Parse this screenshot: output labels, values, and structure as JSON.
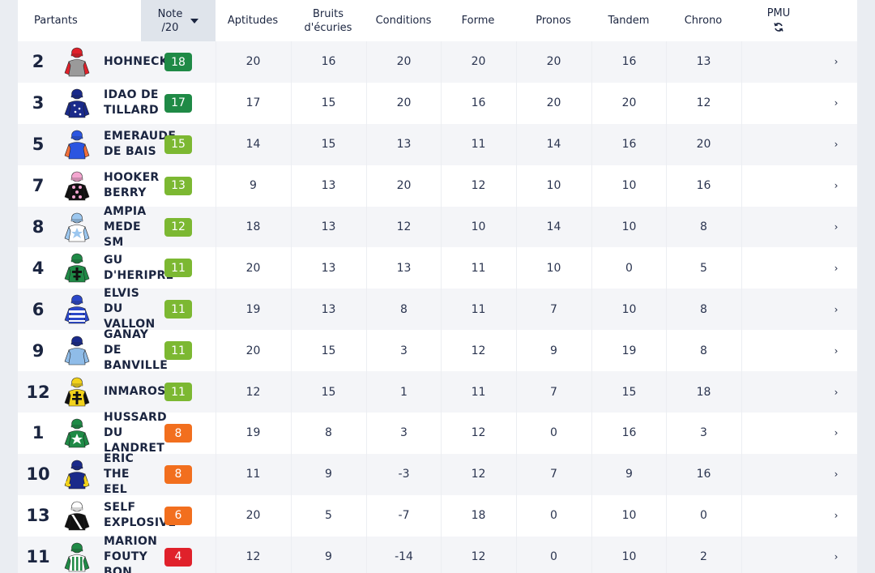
{
  "columns": {
    "partants": "Partants",
    "note_line1": "Note",
    "note_line2": "/20",
    "aptitudes": "Aptitudes",
    "bruits_line1": "Bruits",
    "bruits_line2": "d'écuries",
    "conditions": "Conditions",
    "forme": "Forme",
    "pronos": "Pronos",
    "tandem": "Tandem",
    "chrono": "Chrono",
    "pmu": "PMU",
    "pmu_icon": "refresh-icon"
  },
  "colors": {
    "dark_green": "#1f8a46",
    "light_green": "#7cb832",
    "orange": "#f26f1e",
    "red": "#e0212b"
  },
  "rows": [
    {
      "num": "2",
      "name": [
        "HOHNECK"
      ],
      "note": "18",
      "note_color": "#1f8a46",
      "aptitudes": "20",
      "bruits": "16",
      "conditions": "20",
      "forme": "20",
      "pronos": "20",
      "tandem": "16",
      "chrono": "13",
      "silk": {
        "body": "#9a9a9a",
        "sleeve": "#e0212b",
        "cap": "#e0212b",
        "pattern": "none",
        "patternColor": "#ffffff"
      }
    },
    {
      "num": "3",
      "name": [
        "IDAO DE",
        "TILLARD"
      ],
      "note": "17",
      "note_color": "#1f8a46",
      "aptitudes": "17",
      "bruits": "15",
      "conditions": "20",
      "forme": "16",
      "pronos": "20",
      "tandem": "20",
      "chrono": "12",
      "silk": {
        "body": "#1a2a8a",
        "sleeve": "#1a2a8a",
        "cap": "#1a2a8a",
        "pattern": "dots",
        "patternColor": "#ffffff"
      }
    },
    {
      "num": "5",
      "name": [
        "EMERAUDE",
        "DE BAIS"
      ],
      "note": "15",
      "note_color": "#7cb832",
      "aptitudes": "14",
      "bruits": "15",
      "conditions": "13",
      "forme": "11",
      "pronos": "14",
      "tandem": "16",
      "chrono": "20",
      "silk": {
        "body": "#2b55e0",
        "sleeve": "#f26f3a",
        "cap": "#2b55e0",
        "pattern": "none",
        "patternColor": "#ffffff"
      }
    },
    {
      "num": "7",
      "name": [
        "HOOKER",
        "BERRY"
      ],
      "note": "13",
      "note_color": "#7cb832",
      "aptitudes": "9",
      "bruits": "13",
      "conditions": "20",
      "forme": "12",
      "pronos": "10",
      "tandem": "10",
      "chrono": "16",
      "silk": {
        "body": "#111111",
        "sleeve": "#111111",
        "cap": "#f4a6d0",
        "pattern": "stars",
        "patternColor": "#f4a6d0"
      }
    },
    {
      "num": "8",
      "name": [
        "AMPIA",
        "MEDE",
        "SM"
      ],
      "note": "12",
      "note_color": "#7cb832",
      "aptitudes": "18",
      "bruits": "13",
      "conditions": "12",
      "forme": "10",
      "pronos": "14",
      "tandem": "10",
      "chrono": "8",
      "silk": {
        "body": "#ffffff",
        "sleeve": "#9cc7ef",
        "cap": "#9cc7ef",
        "pattern": "star",
        "patternColor": "#9cc7ef"
      }
    },
    {
      "num": "4",
      "name": [
        "GU",
        "D'HERIPRE"
      ],
      "note": "11",
      "note_color": "#7cb832",
      "aptitudes": "20",
      "bruits": "13",
      "conditions": "13",
      "forme": "11",
      "pronos": "10",
      "tandem": "0",
      "chrono": "5",
      "silk": {
        "body": "#1f8a46",
        "sleeve": "#1f8a46",
        "cap": "#1f8a46",
        "pattern": "cross",
        "patternColor": "#111111"
      }
    },
    {
      "num": "6",
      "name": [
        "ELVIS",
        "DU",
        "VALLON"
      ],
      "note": "11",
      "note_color": "#7cb832",
      "aptitudes": "19",
      "bruits": "13",
      "conditions": "8",
      "forme": "11",
      "pronos": "7",
      "tandem": "10",
      "chrono": "8",
      "silk": {
        "body": "#2b47c9",
        "sleeve": "#2b47c9",
        "cap": "#2b47c9",
        "pattern": "hoops",
        "patternColor": "#ffffff"
      }
    },
    {
      "num": "9",
      "name": [
        "GANAY",
        "DE",
        "BANVILLE"
      ],
      "note": "11",
      "note_color": "#7cb832",
      "aptitudes": "20",
      "bruits": "15",
      "conditions": "3",
      "forme": "12",
      "pronos": "9",
      "tandem": "19",
      "chrono": "8",
      "silk": {
        "body": "#8fbce8",
        "sleeve": "#8fbce8",
        "cap": "#1a2a8a",
        "pattern": "none",
        "patternColor": "#ffffff"
      }
    },
    {
      "num": "12",
      "name": [
        "INMAROSA"
      ],
      "note": "11",
      "note_color": "#7cb832",
      "aptitudes": "12",
      "bruits": "15",
      "conditions": "1",
      "forme": "11",
      "pronos": "7",
      "tandem": "15",
      "chrono": "18",
      "silk": {
        "body": "#f2d21a",
        "sleeve": "#111111",
        "cap": "#f2d21a",
        "pattern": "lorraine",
        "patternColor": "#111111"
      }
    },
    {
      "num": "1",
      "name": [
        "HUSSARD",
        "DU",
        "LANDRET"
      ],
      "note": "8",
      "note_color": "#f26f1e",
      "aptitudes": "19",
      "bruits": "8",
      "conditions": "3",
      "forme": "12",
      "pronos": "0",
      "tandem": "16",
      "chrono": "3",
      "silk": {
        "body": "#1f8a46",
        "sleeve": "#1f8a46",
        "cap": "#1f8a46",
        "pattern": "star",
        "patternColor": "#ffffff"
      }
    },
    {
      "num": "10",
      "name": [
        "ERIC",
        "THE",
        "EEL"
      ],
      "note": "8",
      "note_color": "#f26f1e",
      "aptitudes": "11",
      "bruits": "9",
      "conditions": "-3",
      "forme": "12",
      "pronos": "7",
      "tandem": "9",
      "chrono": "16",
      "silk": {
        "body": "#1a2a8a",
        "sleeve": "#f2d21a",
        "cap": "#1a2a8a",
        "pattern": "check",
        "patternColor": "#f2d21a"
      }
    },
    {
      "num": "13",
      "name": [
        "SELF",
        "EXPLOSIVE"
      ],
      "note": "6",
      "note_color": "#f26f1e",
      "aptitudes": "20",
      "bruits": "5",
      "conditions": "-7",
      "forme": "18",
      "pronos": "0",
      "tandem": "10",
      "chrono": "0",
      "silk": {
        "body": "#111111",
        "sleeve": "#111111",
        "cap": "#ffffff",
        "pattern": "sash",
        "patternColor": "#ffffff"
      }
    },
    {
      "num": "11",
      "name": [
        "MARION",
        "FOUTY",
        "BON"
      ],
      "note": "4",
      "note_color": "#e0212b",
      "aptitudes": "12",
      "bruits": "9",
      "conditions": "-14",
      "forme": "12",
      "pronos": "0",
      "tandem": "10",
      "chrono": "2",
      "silk": {
        "body": "#ffffff",
        "sleeve": "#1f8a46",
        "cap": "#1f8a46",
        "pattern": "stripes",
        "patternColor": "#1f8a46"
      }
    }
  ]
}
